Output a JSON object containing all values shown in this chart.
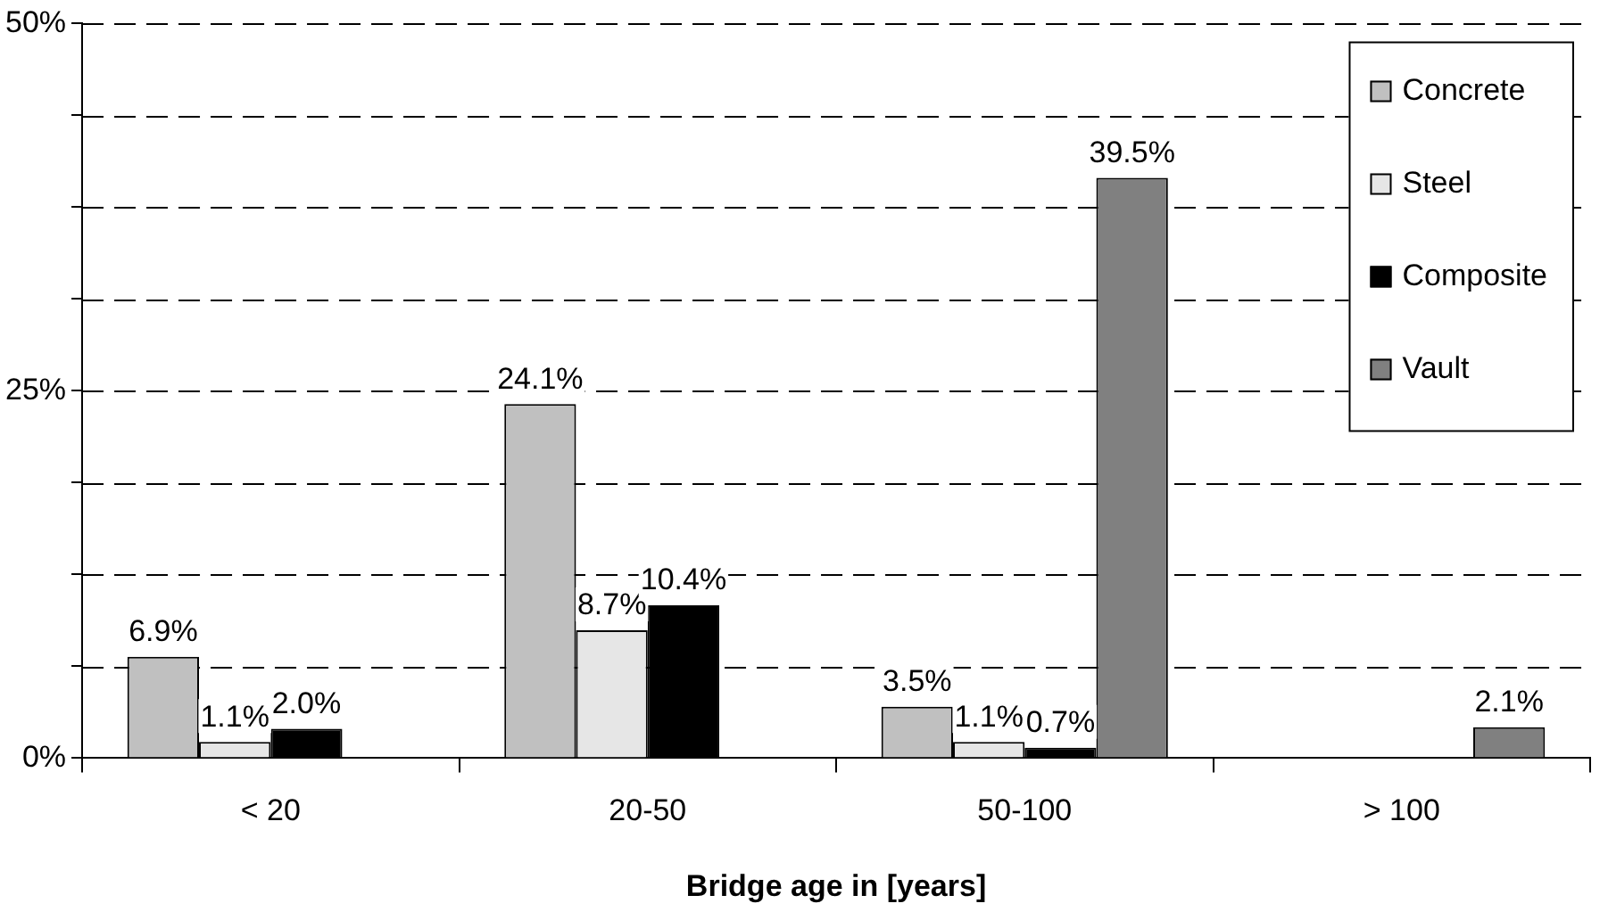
{
  "chart_data": {
    "type": "bar",
    "xlabel": "Bridge age in [years]",
    "categories": [
      "< 20",
      "20-50",
      "50-100",
      "> 100"
    ],
    "series": [
      {
        "name": "Concrete",
        "color": "#c0c0c0",
        "values": [
          6.9,
          24.1,
          3.5,
          null
        ],
        "value_labels": [
          "6.9%",
          "24.1%",
          "3.5%",
          null
        ]
      },
      {
        "name": "Steel",
        "color": "#e6e6e6",
        "values": [
          1.1,
          8.7,
          1.1,
          null
        ],
        "value_labels": [
          "1.1%",
          "8.7%",
          "1.1%",
          null
        ]
      },
      {
        "name": "Composite",
        "color": "#000000",
        "values": [
          2.0,
          10.4,
          0.7,
          null
        ],
        "value_labels": [
          "2.0%",
          "10.4%",
          "0.7%",
          null
        ]
      },
      {
        "name": "Vault",
        "color": "#808080",
        "values": [
          null,
          null,
          39.5,
          2.1
        ],
        "value_labels": [
          null,
          null,
          "39.5%",
          "2.1%"
        ]
      }
    ],
    "ylim": [
      0,
      50
    ],
    "yticks": [
      {
        "value": 0,
        "label": "0%"
      },
      {
        "value": 6.25,
        "label": null
      },
      {
        "value": 12.5,
        "label": null
      },
      {
        "value": 18.75,
        "label": null
      },
      {
        "value": 25,
        "label": "25%"
      },
      {
        "value": 31.25,
        "label": null
      },
      {
        "value": 37.5,
        "label": null
      },
      {
        "value": 43.75,
        "label": null
      },
      {
        "value": 50,
        "label": "50%"
      }
    ],
    "grid": "y",
    "line_style": "dashed",
    "legend": "top right"
  }
}
